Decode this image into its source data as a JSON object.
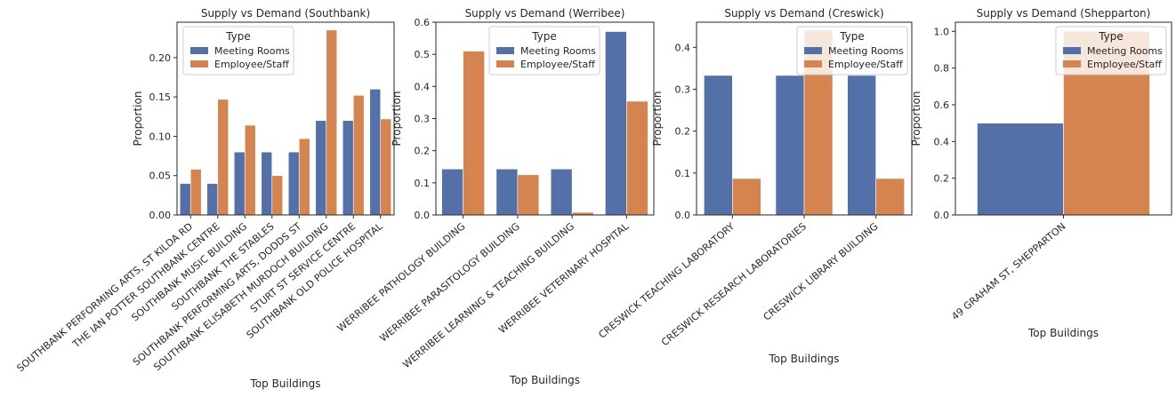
{
  "colors": {
    "meeting_rooms": "#5470a9",
    "employee_staff": "#d6844f",
    "axis": "#262626"
  },
  "chart_data": [
    {
      "type": "bar",
      "title": "Supply vs Demand (Southbank)",
      "xlabel": "Top Buildings",
      "ylabel": "Proportion",
      "ylim": [
        0,
        0.245
      ],
      "yticks": [
        "0.00",
        "0.05",
        "0.10",
        "0.15",
        "0.20"
      ],
      "legend": {
        "title": "Type",
        "placement": "upper-left"
      },
      "categories": [
        "SOUTHBANK PERFORMING ARTS, ST KILDA RD",
        "THE IAN POTTER SOUTHBANK CENTRE",
        "SOUTHBANK MUSIC BUILDING",
        "SOUTHBANK THE STABLES",
        "SOUTHBANK PERFORMING ARTS, DODDS ST",
        "SOUTHBANK ELISABETH MURDOCH BUILDING",
        "STURT ST SERVICE CENTRE",
        "SOUTHBANK OLD POLICE HOSPITAL"
      ],
      "series": [
        {
          "name": "Meeting Rooms",
          "values": [
            0.04,
            0.04,
            0.08,
            0.08,
            0.08,
            0.12,
            0.12,
            0.16
          ]
        },
        {
          "name": "Employee/Staff",
          "values": [
            0.058,
            0.147,
            0.114,
            0.05,
            0.097,
            0.235,
            0.152,
            0.122
          ]
        }
      ]
    },
    {
      "type": "bar",
      "title": "Supply vs Demand (Werribee)",
      "xlabel": "Top Buildings",
      "ylabel": "Proportion",
      "ylim": [
        0,
        0.6
      ],
      "yticks": [
        "0.0",
        "0.1",
        "0.2",
        "0.3",
        "0.4",
        "0.5",
        "0.6"
      ],
      "legend": {
        "title": "Type",
        "placement": "upper-center"
      },
      "categories": [
        "WERRIBEE PATHOLOGY BUILDING",
        "WERRIBEE PARASITOLOGY BUILDING",
        "WERRIBEE LEARNING & TEACHING BUILDING",
        "WERRIBEE VETERINARY HOSPITAL"
      ],
      "series": [
        {
          "name": "Meeting Rooms",
          "values": [
            0.143,
            0.143,
            0.143,
            0.571
          ]
        },
        {
          "name": "Employee/Staff",
          "values": [
            0.51,
            0.125,
            0.008,
            0.354
          ]
        }
      ]
    },
    {
      "type": "bar",
      "title": "Supply vs Demand (Creswick)",
      "xlabel": "Top Buildings",
      "ylabel": "Proportion",
      "ylim": [
        0,
        0.46
      ],
      "yticks": [
        "0.0",
        "0.1",
        "0.2",
        "0.3",
        "0.4"
      ],
      "legend": {
        "title": "Type",
        "placement": "upper-right"
      },
      "categories": [
        "CRESWICK TEACHING LABORATORY",
        "CRESWICK RESEARCH LABORATORIES",
        "CRESWICK LIBRARY BUILDING"
      ],
      "series": [
        {
          "name": "Meeting Rooms",
          "values": [
            0.333,
            0.333,
            0.333
          ]
        },
        {
          "name": "Employee/Staff",
          "values": [
            0.087,
            0.441,
            0.087
          ]
        }
      ]
    },
    {
      "type": "bar",
      "title": "Supply vs Demand (Shepparton)",
      "xlabel": "Top Buildings",
      "ylabel": "Proportion",
      "ylim": [
        0,
        1.05
      ],
      "yticks": [
        "0.0",
        "0.2",
        "0.4",
        "0.6",
        "0.8",
        "1.0"
      ],
      "legend": {
        "title": "Type",
        "placement": "upper-right"
      },
      "categories": [
        "49 GRAHAM ST, SHEPPARTON"
      ],
      "series": [
        {
          "name": "Meeting Rooms",
          "values": [
            0.5
          ]
        },
        {
          "name": "Employee/Staff",
          "values": [
            1.0
          ]
        }
      ]
    }
  ]
}
